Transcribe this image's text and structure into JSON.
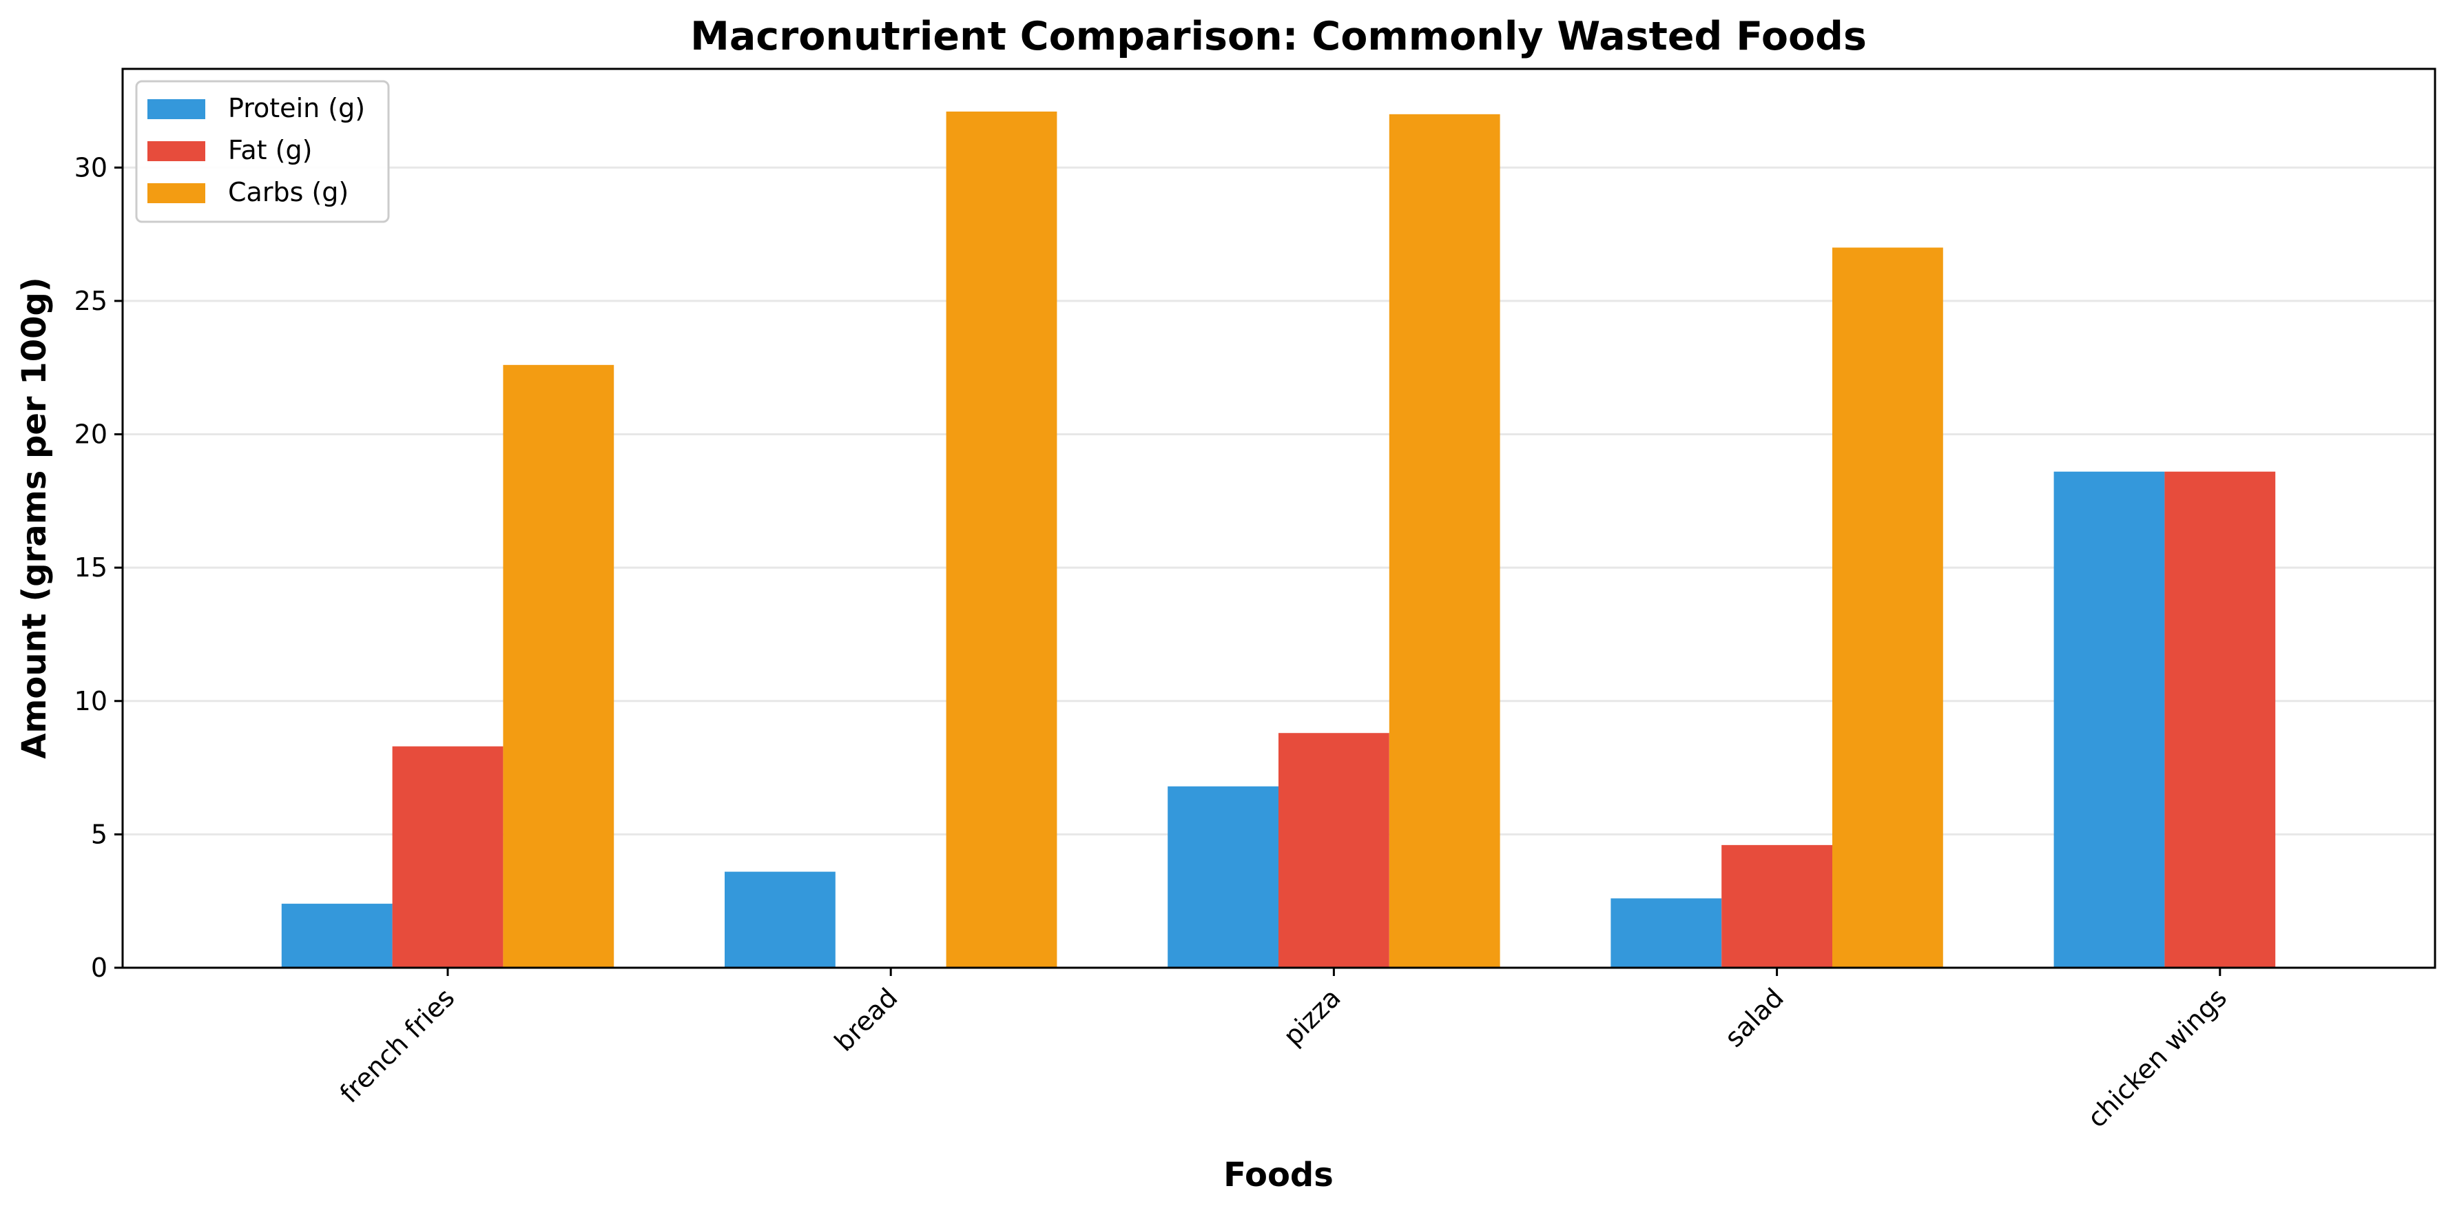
{
  "chart_data": {
    "type": "bar",
    "title": "Macronutrient Comparison: Commonly Wasted Foods",
    "xlabel": "Foods",
    "ylabel": "Amount (grams per 100g)",
    "categories": [
      "french fries",
      "bread",
      "pizza",
      "salad",
      "chicken wings"
    ],
    "series": [
      {
        "name": "Protein (g)",
        "color": "#3498db",
        "values": [
          2.4,
          3.6,
          6.8,
          2.6,
          18.6
        ]
      },
      {
        "name": "Fat (g)",
        "color": "#e74c3c",
        "values": [
          8.3,
          0,
          8.8,
          4.6,
          18.6
        ]
      },
      {
        "name": "Carbs (g)",
        "color": "#f39c12",
        "values": [
          22.6,
          32.1,
          32.0,
          27.0,
          0
        ]
      }
    ],
    "ylim": [
      0,
      33.7
    ],
    "yticks": [
      0,
      5,
      10,
      15,
      20,
      25,
      30
    ],
    "grid": "y",
    "legend": "top-left"
  }
}
